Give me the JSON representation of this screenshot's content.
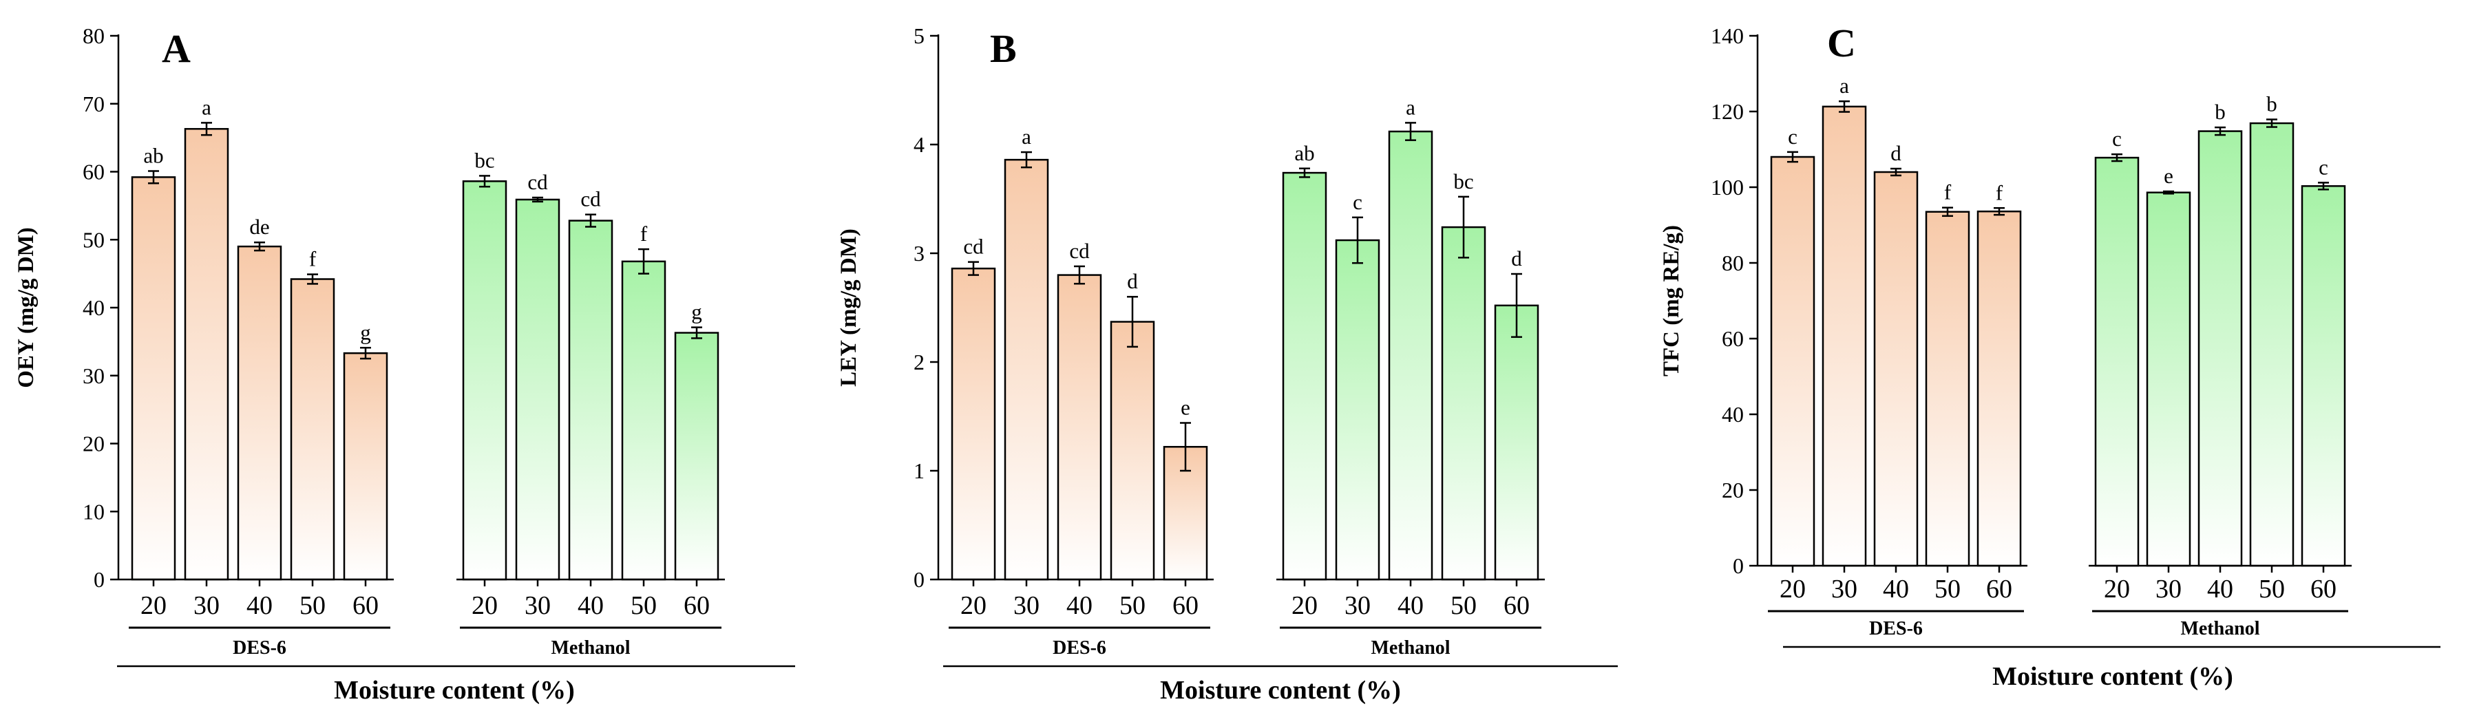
{
  "chart_data": [
    {
      "type": "bar",
      "panel": "A",
      "ylabel": "OEY (mg/g DM)",
      "xlabel": "Moisture content (%)",
      "ylim": [
        0,
        80
      ],
      "yticks": [
        0,
        10,
        20,
        30,
        40,
        50,
        60,
        70,
        80
      ],
      "groups": [
        {
          "name": "DES-6",
          "color": "#f7c9a8",
          "categories": [
            "20",
            "30",
            "40",
            "50",
            "60"
          ],
          "values": [
            59.2,
            66.3,
            49.0,
            44.2,
            33.3
          ],
          "errors": [
            0.9,
            0.9,
            0.6,
            0.7,
            0.8
          ],
          "letters": [
            "ab",
            "a",
            "de",
            "f",
            "g"
          ]
        },
        {
          "name": "Methanol",
          "color": "#a6f2a6",
          "categories": [
            "20",
            "30",
            "40",
            "50",
            "60"
          ],
          "values": [
            58.6,
            55.9,
            52.8,
            46.8,
            36.3
          ],
          "errors": [
            0.8,
            0.3,
            0.9,
            1.8,
            0.8
          ],
          "letters": [
            "bc",
            "cd",
            "cd",
            "f",
            "g"
          ]
        }
      ]
    },
    {
      "type": "bar",
      "panel": "B",
      "ylabel": "LEY (mg/g DM)",
      "xlabel": "Moisture content (%)",
      "ylim": [
        0,
        5
      ],
      "yticks": [
        0,
        1,
        2,
        3,
        4,
        5
      ],
      "groups": [
        {
          "name": "DES-6",
          "color": "#f7c9a8",
          "categories": [
            "20",
            "30",
            "40",
            "50",
            "60"
          ],
          "values": [
            2.86,
            3.86,
            2.8,
            2.37,
            1.22
          ],
          "errors": [
            0.06,
            0.07,
            0.08,
            0.23,
            0.22
          ],
          "letters": [
            "cd",
            "a",
            "cd",
            "d",
            "e"
          ]
        },
        {
          "name": "Methanol",
          "color": "#a6f2a6",
          "categories": [
            "20",
            "30",
            "40",
            "50",
            "60"
          ],
          "values": [
            3.74,
            3.12,
            4.12,
            3.24,
            2.52
          ],
          "errors": [
            0.04,
            0.21,
            0.08,
            0.28,
            0.29
          ],
          "letters": [
            "ab",
            "c",
            "a",
            "bc",
            "d"
          ]
        }
      ]
    },
    {
      "type": "bar",
      "panel": "C",
      "ylabel": "TFC (mg RE/g)",
      "xlabel": "Moisture content (%)",
      "ylim": [
        0,
        140
      ],
      "yticks": [
        0,
        20,
        40,
        60,
        80,
        100,
        120,
        140
      ],
      "groups": [
        {
          "name": "DES-6",
          "color": "#f7c9a8",
          "categories": [
            "20",
            "30",
            "40",
            "50",
            "60"
          ],
          "values": [
            108.0,
            121.3,
            104.0,
            93.5,
            93.6
          ],
          "errors": [
            1.3,
            1.4,
            0.9,
            1.1,
            0.9
          ],
          "letters": [
            "c",
            "a",
            "d",
            "f",
            "f"
          ]
        },
        {
          "name": "Methanol",
          "color": "#a6f2a6",
          "categories": [
            "20",
            "30",
            "40",
            "50",
            "60"
          ],
          "values": [
            107.8,
            98.6,
            114.8,
            116.9,
            100.3
          ],
          "errors": [
            0.9,
            0.3,
            1.0,
            1.0,
            0.9
          ],
          "letters": [
            "c",
            "e",
            "b",
            "b",
            "c"
          ]
        }
      ]
    }
  ]
}
